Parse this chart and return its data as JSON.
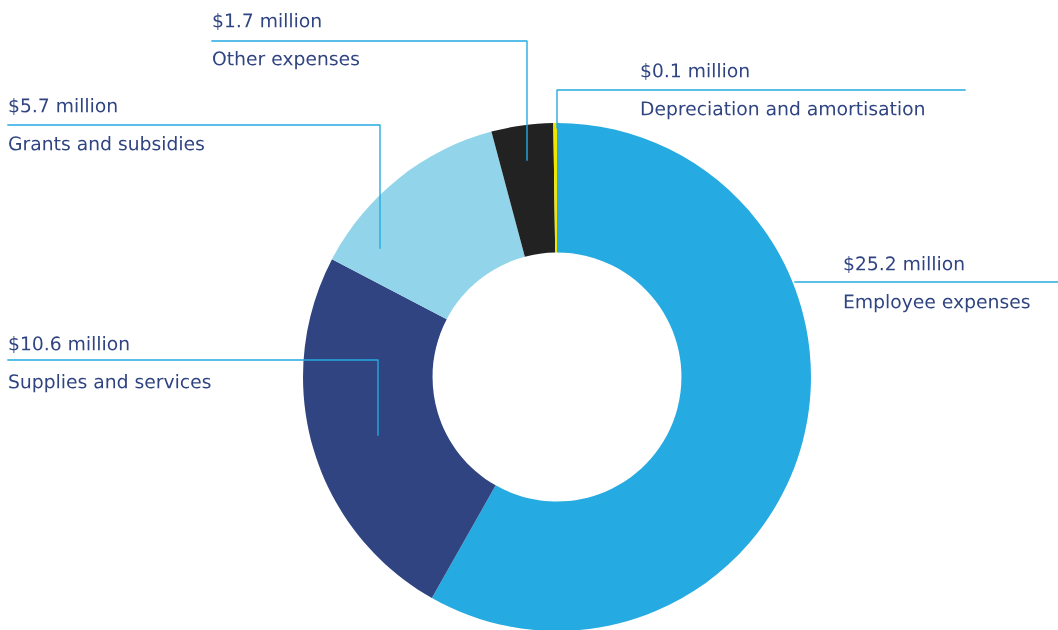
{
  "chart_data": {
    "type": "donut",
    "categories": [
      "Employee expenses",
      "Supplies and services",
      "Grants and subsidies",
      "Other expenses",
      "Depreciation and amortisation"
    ],
    "values": [
      25.2,
      10.6,
      5.7,
      1.7,
      0.1
    ],
    "colors": [
      "#25aae1",
      "#2f4480",
      "#92d5ea",
      "#222222",
      "#f0e500"
    ],
    "value_labels": [
      "$25.2 million",
      "$10.6 million",
      "$5.7 million",
      "$1.7 million",
      "$0.1 million"
    ]
  }
}
